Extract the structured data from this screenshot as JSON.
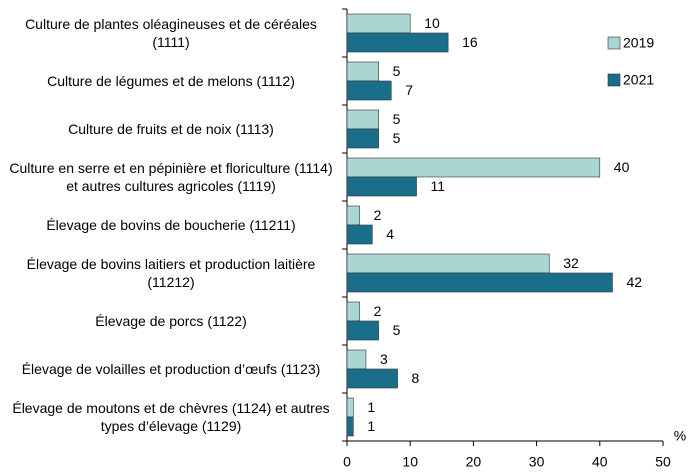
{
  "chart_data": {
    "type": "bar",
    "orientation": "horizontal",
    "categories": [
      "Culture de plantes oléagineuses et de céréales (1111)",
      "Culture de légumes et de melons (1112)",
      "Culture de fruits et de noix (1113)",
      "Culture en serre et en pépinière et floriculture (1114) et autres cultures agricoles (1119)",
      "Élevage de bovins de boucherie (11211)",
      "Élevage de bovins laitiers et production laitière (11212)",
      "Élevage de porcs (1122)",
      "Élevage de volailles et production d’œufs (1123)",
      "Élevage de moutons et de chèvres (1124) et autres types d’élevage (1129)"
    ],
    "series": [
      {
        "name": "2019",
        "color": "#a9d6d2",
        "values": [
          10,
          5,
          5,
          40,
          2,
          32,
          2,
          3,
          1
        ]
      },
      {
        "name": "2021",
        "color": "#1a6e8a",
        "values": [
          16,
          7,
          5,
          11,
          4,
          42,
          5,
          8,
          1
        ]
      }
    ],
    "xlabel": "%",
    "xlim": [
      0,
      50
    ],
    "xticks": [
      0,
      10,
      20,
      30,
      40,
      50
    ],
    "legend": "right"
  }
}
